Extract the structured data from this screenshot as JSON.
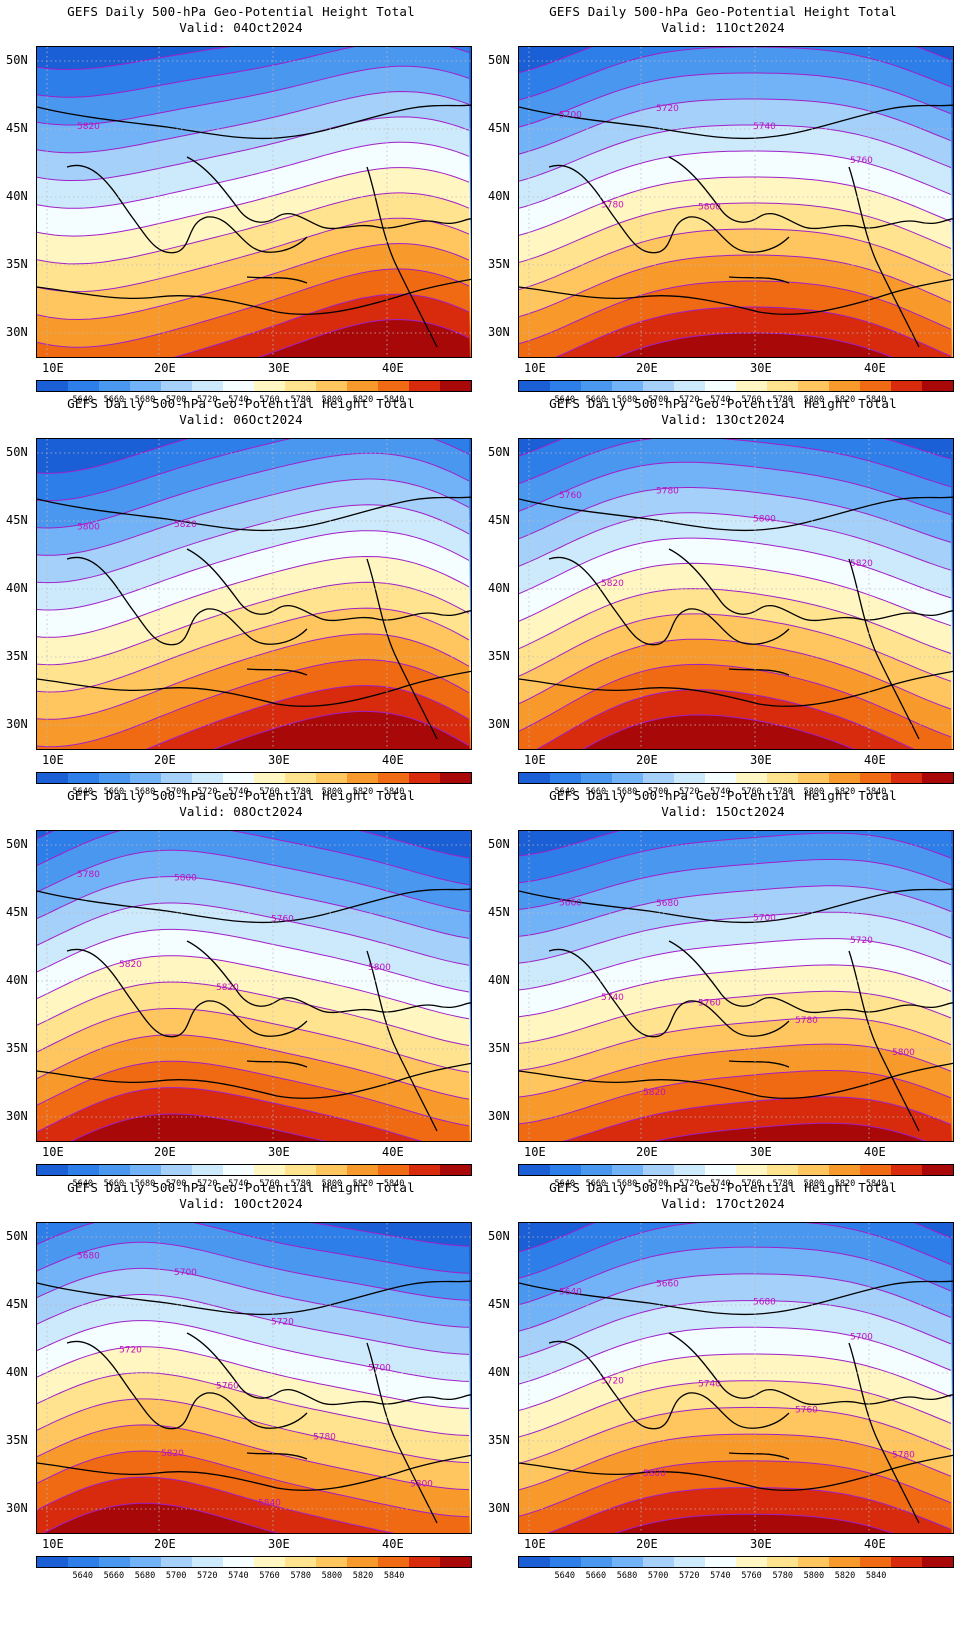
{
  "colorbar": {
    "colors": [
      "#1a5fd6",
      "#2d7ee8",
      "#4a97f0",
      "#72b3f7",
      "#a5d0fa",
      "#cdeafc",
      "#f4fdff",
      "#fff6c2",
      "#ffe38f",
      "#ffc660",
      "#f89a2b",
      "#f06a14",
      "#d82a0c",
      "#a80808"
    ],
    "labels": [
      "5640",
      "5660",
      "5680",
      "5700",
      "5720",
      "5740",
      "5760",
      "5780",
      "5800",
      "5820",
      "5840"
    ]
  },
  "axes": {
    "lat_labels": [
      "50N",
      "45N",
      "40N",
      "35N",
      "30N"
    ],
    "lon_labels": [
      "10E",
      "20E",
      "30E",
      "40E"
    ]
  },
  "panels": [
    {
      "title": "GEFS Daily 500-hPa Geo-Potential Height Total",
      "valid": "Valid: 04Oct2024",
      "contour_labels": [
        "5820"
      ],
      "ridge": 0.8,
      "trough": 0.3,
      "phase": 0.2
    },
    {
      "title": "GEFS Daily 500-hPa Geo-Potential Height Total",
      "valid": "Valid: 11Oct2024",
      "contour_labels": [
        "5700",
        "5720",
        "5740",
        "5760",
        "5780",
        "5800"
      ],
      "ridge": 0.6,
      "trough": 0.5,
      "phase": 0.5
    },
    {
      "title": "GEFS Daily 500-hPa Geo-Potential Height Total",
      "valid": "Valid: 06Oct2024",
      "contour_labels": [
        "5800",
        "5820"
      ],
      "ridge": 0.9,
      "trough": 0.8,
      "phase": 0.3
    },
    {
      "title": "GEFS Daily 500-hPa Geo-Potential Height Total",
      "valid": "Valid: 13Oct2024",
      "contour_labels": [
        "5760",
        "5780",
        "5800",
        "5820",
        "5820"
      ],
      "ridge": 0.9,
      "trough": 0.4,
      "phase": 0.6
    },
    {
      "title": "GEFS Daily 500-hPa Geo-Potential Height Total",
      "valid": "Valid: 08Oct2024",
      "contour_labels": [
        "5780",
        "5800",
        "5760",
        "5800",
        "5820",
        "5820"
      ],
      "ridge": 0.5,
      "trough": 0.6,
      "phase": 0.7
    },
    {
      "title": "GEFS Daily 500-hPa Geo-Potential Height Total",
      "valid": "Valid: 15Oct2024",
      "contour_labels": [
        "5660",
        "5680",
        "5700",
        "5720",
        "5740",
        "5760",
        "5780",
        "5800",
        "5820"
      ],
      "ridge": 0.3,
      "trough": 0.3,
      "phase": 0.4
    },
    {
      "title": "GEFS Daily 500-hPa Geo-Potential Height Total",
      "valid": "Valid: 10Oct2024",
      "contour_labels": [
        "5680",
        "5700",
        "5720",
        "5700",
        "5720",
        "5760",
        "5780",
        "5800",
        "5820",
        "5840"
      ],
      "ridge": 0.5,
      "trough": 0.4,
      "phase": 0.8
    },
    {
      "title": "GEFS Daily 500-hPa Geo-Potential Height Total",
      "valid": "Valid: 17Oct2024",
      "contour_labels": [
        "5640",
        "5660",
        "5680",
        "5700",
        "5720",
        "5740",
        "5760",
        "5780",
        "5800"
      ],
      "ridge": 0.4,
      "trough": 0.7,
      "phase": 0.5
    }
  ]
}
